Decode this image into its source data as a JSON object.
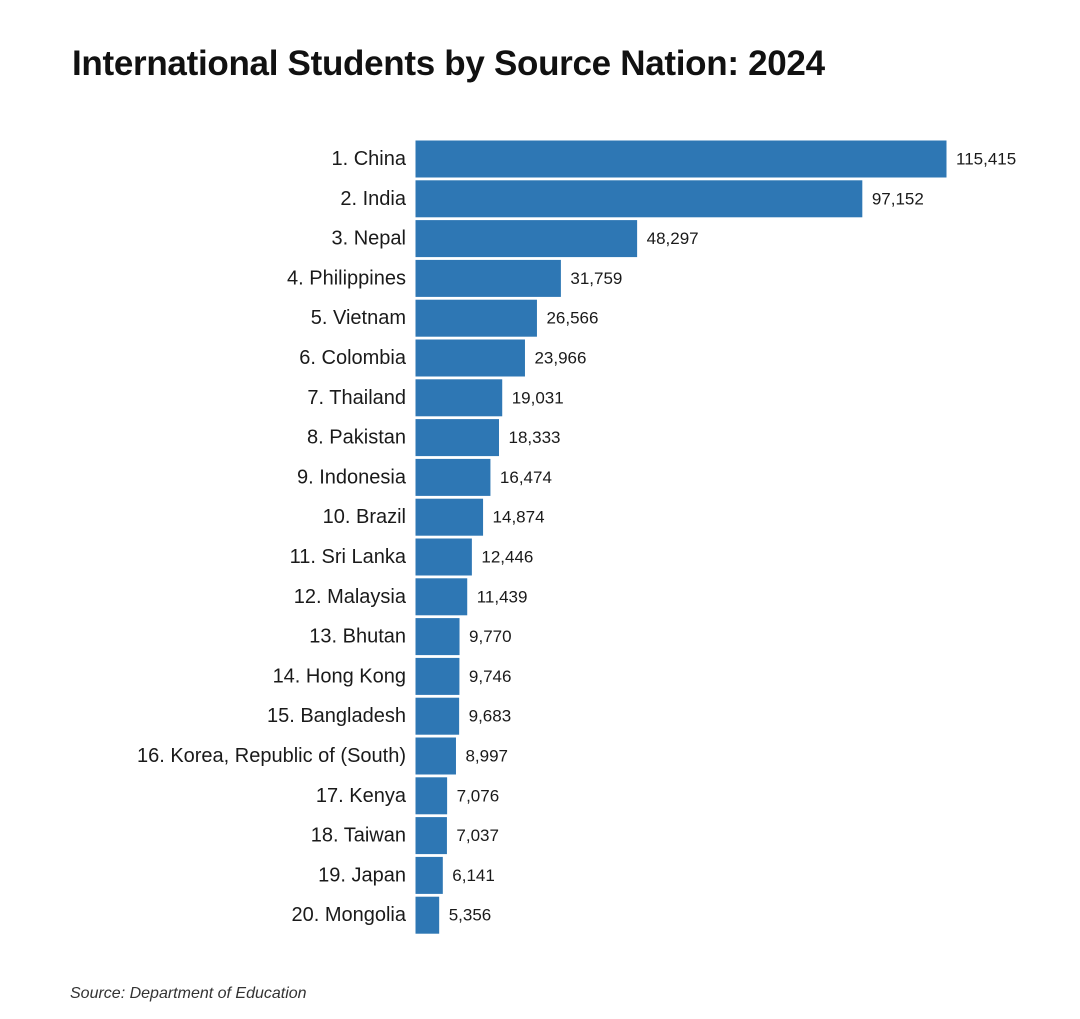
{
  "chart_data": {
    "type": "bar",
    "orientation": "horizontal",
    "title": "International Students by Source Nation: 2024",
    "categories": [
      "1. China",
      "2. India",
      "3. Nepal",
      "4. Philippines",
      "5. Vietnam",
      "6. Colombia",
      "7. Thailand",
      "8. Pakistan",
      "9. Indonesia",
      "10. Brazil",
      "11. Sri Lanka",
      "12. Malaysia",
      "13. Bhutan",
      "14. Hong Kong",
      "15. Bangladesh",
      "16. Korea, Republic of (South)",
      "17. Kenya",
      "18. Taiwan",
      "19. Japan",
      "20. Mongolia"
    ],
    "values": [
      115415,
      97152,
      48297,
      31759,
      26566,
      23966,
      19031,
      18333,
      16474,
      14874,
      12446,
      11439,
      9770,
      9746,
      9683,
      8997,
      7076,
      7037,
      6141,
      5356
    ],
    "value_labels": [
      "115,415",
      "97,152",
      "48,297",
      "31,759",
      "26,566",
      "23,966",
      "19,031",
      "18,333",
      "16,474",
      "14,874",
      "12,446",
      "11,439",
      "9,770",
      "9,746",
      "9,683",
      "8,997",
      "7,076",
      "7,037",
      "6,141",
      "5,356"
    ],
    "xlabel": "",
    "ylabel": "",
    "xlim": [
      0,
      115415
    ],
    "grid": false,
    "legend": "none",
    "bar_color": "#2e77b4",
    "source": "Source: Department of Education"
  }
}
